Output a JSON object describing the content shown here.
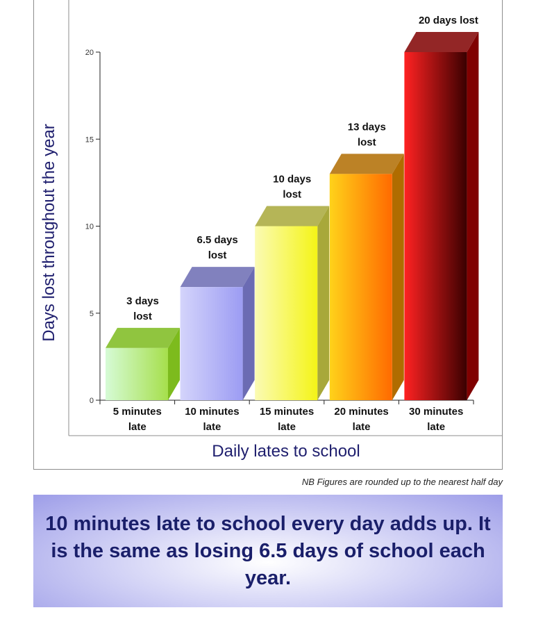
{
  "chart_data": {
    "type": "bar",
    "title": "",
    "xlabel": "Daily lates to school",
    "ylabel": "Days lost throughout the year",
    "ylim": [
      0,
      20
    ],
    "yticks": [
      0,
      5,
      10,
      15,
      20
    ],
    "grid": false,
    "categories": [
      [
        "5 minutes",
        "late"
      ],
      [
        "10 minutes",
        "late"
      ],
      [
        "15 minutes",
        "late"
      ],
      [
        "20 minutes",
        "late"
      ],
      [
        "30 minutes",
        "late"
      ]
    ],
    "values": [
      3,
      6.5,
      10,
      13,
      20
    ],
    "data_labels": [
      [
        "3 days",
        "lost"
      ],
      [
        "6.5 days",
        "lost"
      ],
      [
        "10 days",
        "lost"
      ],
      [
        "13 days",
        "lost"
      ],
      [
        "20 days lost"
      ]
    ],
    "bar_colors": [
      [
        "#d6fbd6",
        "#a6df4c",
        "#7dbb1d"
      ],
      [
        "#d4d4fb",
        "#9c9cf3",
        "#6b6bb3"
      ],
      [
        "#fbfbb4",
        "#f4f417",
        "#a8a83a"
      ],
      [
        "#ffd21a",
        "#ff6a00",
        "#b06c00"
      ],
      [
        "#ff2222",
        "#3a0000",
        "#800000"
      ]
    ]
  },
  "note": "NB Figures are rounded up to the nearest half day",
  "banner": {
    "message": "10 minutes late to school every day adds up. It is the same as losing 6.5 days of school each year."
  }
}
